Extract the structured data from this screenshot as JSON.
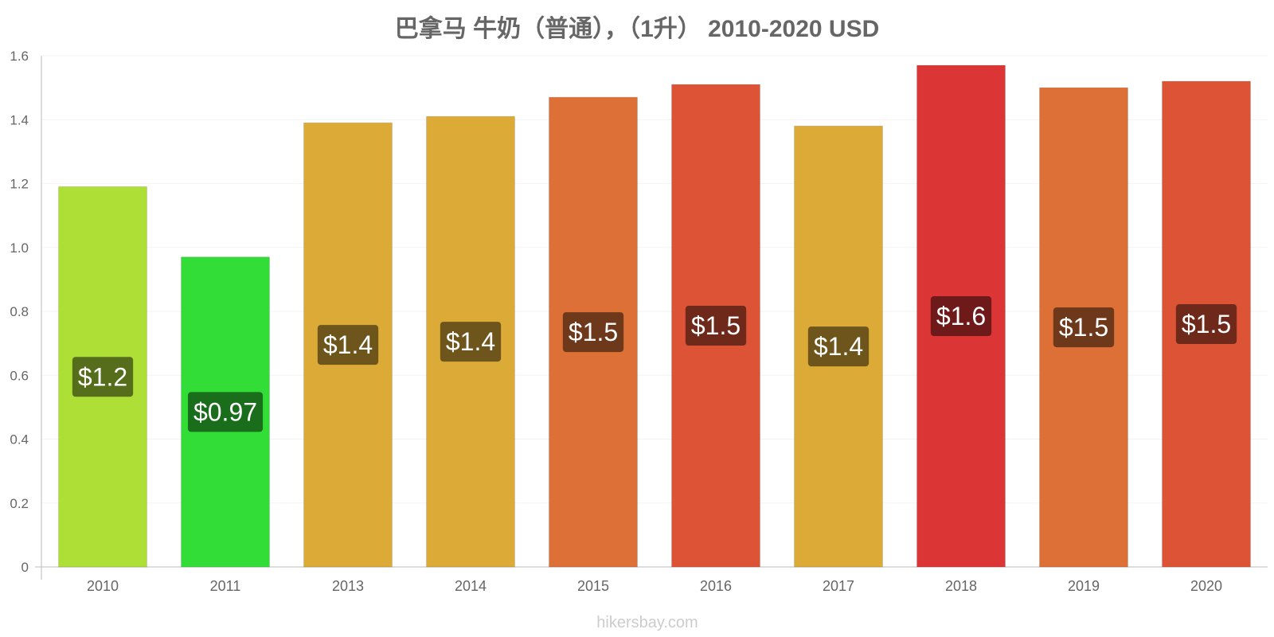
{
  "chart_data": {
    "type": "bar",
    "title": "巴拿马 牛奶（普通），（1升） 2010-2020 USD",
    "xlabel": "",
    "ylabel": "",
    "ylim": [
      0,
      1.6
    ],
    "yticks": [
      "0",
      "0.2",
      "0.4",
      "0.6",
      "0.8",
      "1.0",
      "1.2",
      "1.4",
      "1.6"
    ],
    "categories": [
      "2010",
      "2011",
      "2013",
      "2014",
      "2015",
      "2016",
      "2017",
      "2018",
      "2019",
      "2020"
    ],
    "values": [
      1.19,
      0.97,
      1.39,
      1.41,
      1.47,
      1.51,
      1.38,
      1.57,
      1.5,
      1.52
    ],
    "labels": [
      "$1.2",
      "$0.97",
      "$1.4",
      "$1.4",
      "$1.5",
      "$1.5",
      "$1.4",
      "$1.6",
      "$1.5",
      "$1.5"
    ],
    "bar_colors": [
      "#addf36",
      "#33dd37",
      "#dcaa36",
      "#dcaa36",
      "#dd7036",
      "#dd5336",
      "#dcaa36",
      "#dc3536",
      "#dd7036",
      "#dd5336"
    ],
    "label_colors": [
      "#566e1b",
      "#1a6e1b",
      "#6e551b",
      "#6e551b",
      "#6e381b",
      "#6e291b",
      "#6e551b",
      "#6e1a1b",
      "#6e381b",
      "#6e291b"
    ],
    "grid": true,
    "legend": "none"
  },
  "watermark": "hikersbay.com"
}
